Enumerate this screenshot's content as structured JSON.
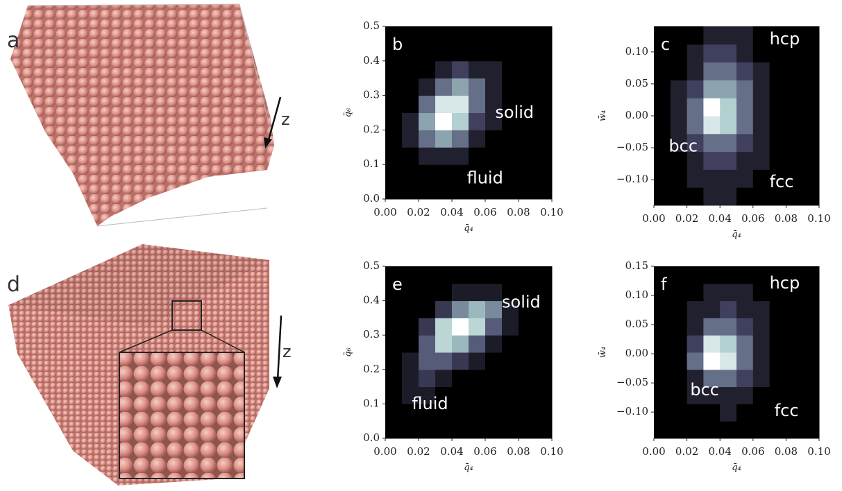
{
  "panels": {
    "a": {
      "label": "a",
      "axis": "z"
    },
    "d": {
      "label": "d",
      "axis": "z"
    }
  },
  "colormap": [
    "#000000",
    "#4b4b6e",
    "#a5c8c8",
    "#ffffff"
  ],
  "chart_data": [
    {
      "type": "heatmap",
      "panel": "b",
      "xlabel": "q̄₄",
      "ylabel": "q̄₆",
      "annotations": [
        "solid",
        "fluid"
      ],
      "xlim": [
        0,
        0.1
      ],
      "ylim": [
        0,
        0.5
      ],
      "xticks": [
        {
          "value": 0,
          "label": "0.00"
        },
        {
          "value": 0.02,
          "label": "0.02"
        },
        {
          "value": 0.04,
          "label": "0.04"
        },
        {
          "value": 0.06,
          "label": "0.06"
        },
        {
          "value": 0.08,
          "label": "0.08"
        },
        {
          "value": 0.1,
          "label": "0.10"
        }
      ],
      "yticks": [
        {
          "value": 0,
          "label": "0.0"
        },
        0.1,
        0.2,
        0.3,
        0.4,
        0.5
      ],
      "xbins": [
        0,
        0.01,
        0.02,
        0.03,
        0.04,
        0.05,
        0.06,
        0.07,
        0.08,
        0.09,
        0.1
      ],
      "ybins": [
        0,
        0.05,
        0.1,
        0.15,
        0.2,
        0.25,
        0.3,
        0.35,
        0.4,
        0.45,
        0.5
      ],
      "values": [
        [
          0,
          0,
          0,
          0,
          0,
          0,
          0,
          0,
          0,
          0
        ],
        [
          0,
          0,
          0,
          0,
          0,
          0,
          0,
          0,
          0,
          0
        ],
        [
          0,
          0,
          1,
          1,
          1,
          0,
          0,
          0,
          0,
          0
        ],
        [
          0,
          1,
          3,
          4,
          3,
          1,
          0,
          0,
          0,
          0
        ],
        [
          0,
          1,
          4,
          7,
          5,
          2,
          1,
          0,
          0,
          0
        ],
        [
          0,
          0,
          3,
          6,
          6,
          3,
          1,
          0,
          0,
          0
        ],
        [
          0,
          0,
          1,
          3,
          4,
          3,
          1,
          0,
          0,
          0
        ],
        [
          0,
          0,
          0,
          1,
          2,
          1,
          1,
          0,
          0,
          0
        ],
        [
          0,
          0,
          0,
          0,
          0,
          0,
          0,
          0,
          0,
          0
        ],
        [
          0,
          0,
          0,
          0,
          0,
          0,
          0,
          0,
          0,
          0
        ]
      ]
    },
    {
      "type": "heatmap",
      "panel": "c",
      "xlabel": "q̄₄",
      "ylabel": "w̄₄",
      "annotations": [
        "hcp",
        "bcc",
        "fcc"
      ],
      "xlim": [
        0,
        0.1
      ],
      "ylim": [
        -0.14,
        0.14
      ],
      "xticks": [
        {
          "value": 0,
          "label": "0.00"
        },
        {
          "value": 0.02,
          "label": "0.02"
        },
        {
          "value": 0.04,
          "label": "0.04"
        },
        {
          "value": 0.06,
          "label": "0.06"
        },
        {
          "value": 0.08,
          "label": "0.08"
        },
        {
          "value": 0.1,
          "label": "0.10"
        }
      ],
      "yticks": [
        {
          "value": -0.1,
          "label": "−0.10"
        },
        {
          "value": -0.05,
          "label": "−0.05"
        },
        {
          "value": 0,
          "label": "0.00"
        },
        0.05,
        {
          "value": 0.1,
          "label": "0.10"
        }
      ],
      "xbins": [
        0,
        0.01,
        0.02,
        0.03,
        0.04,
        0.05,
        0.06,
        0.07,
        0.08,
        0.09,
        0.1
      ],
      "ybins": [
        -0.14,
        -0.112,
        -0.084,
        -0.056,
        -0.028,
        0,
        0.028,
        0.056,
        0.084,
        0.112,
        0.14
      ],
      "values": [
        [
          0,
          0,
          0,
          1,
          1,
          0,
          0,
          0,
          0,
          0
        ],
        [
          0,
          0,
          1,
          1,
          1,
          1,
          0,
          0,
          0,
          0
        ],
        [
          0,
          0,
          1,
          2,
          2,
          1,
          1,
          0,
          0,
          0
        ],
        [
          0,
          1,
          2,
          3,
          3,
          2,
          1,
          0,
          0,
          0
        ],
        [
          0,
          1,
          3,
          6,
          5,
          3,
          1,
          0,
          0,
          0
        ],
        [
          0,
          1,
          3,
          7,
          5,
          3,
          1,
          0,
          0,
          0
        ],
        [
          0,
          1,
          2,
          4,
          4,
          3,
          1,
          0,
          0,
          0
        ],
        [
          0,
          0,
          1,
          3,
          3,
          2,
          1,
          0,
          0,
          0
        ],
        [
          0,
          0,
          1,
          2,
          2,
          1,
          0,
          0,
          0,
          0
        ],
        [
          0,
          0,
          0,
          1,
          1,
          1,
          0,
          0,
          0,
          0
        ]
      ]
    },
    {
      "type": "heatmap",
      "panel": "e",
      "xlabel": "q̄₄",
      "ylabel": "q̄₆",
      "annotations": [
        "solid",
        "fluid"
      ],
      "xlim": [
        0,
        0.1
      ],
      "ylim": [
        0,
        0.5
      ],
      "xticks": [
        {
          "value": 0,
          "label": "0.00"
        },
        {
          "value": 0.02,
          "label": "0.02"
        },
        {
          "value": 0.04,
          "label": "0.04"
        },
        {
          "value": 0.06,
          "label": "0.06"
        },
        {
          "value": 0.08,
          "label": "0.08"
        },
        {
          "value": 0.1,
          "label": "0.10"
        }
      ],
      "yticks": [
        {
          "value": 0,
          "label": "0.0"
        },
        0.1,
        0.2,
        0.3,
        0.4,
        0.5
      ],
      "xbins": [
        0,
        0.01,
        0.02,
        0.03,
        0.04,
        0.05,
        0.06,
        0.07,
        0.08,
        0.09,
        0.1
      ],
      "ybins": [
        0,
        0.05,
        0.1,
        0.15,
        0.2,
        0.25,
        0.3,
        0.35,
        0.4,
        0.45,
        0.5
      ],
      "values": [
        [
          0,
          0,
          0,
          0,
          0,
          0,
          0,
          0,
          0,
          0
        ],
        [
          0,
          0,
          0,
          0,
          0,
          0,
          0,
          0,
          0,
          0
        ],
        [
          0,
          1,
          1,
          0,
          0,
          0,
          0,
          0,
          0,
          0
        ],
        [
          0,
          1,
          2,
          1,
          0,
          0,
          0,
          0,
          0,
          0
        ],
        [
          0,
          1,
          3,
          3,
          2,
          1,
          0,
          0,
          0,
          0
        ],
        [
          0,
          0,
          3,
          6,
          5,
          3,
          1,
          0,
          0,
          0
        ],
        [
          0,
          0,
          2,
          6,
          8,
          6,
          3,
          1,
          0,
          0
        ],
        [
          0,
          0,
          0,
          2,
          4,
          5,
          4,
          1,
          0,
          0
        ],
        [
          0,
          0,
          0,
          0,
          1,
          1,
          1,
          0,
          0,
          0
        ],
        [
          0,
          0,
          0,
          0,
          0,
          0,
          0,
          0,
          0,
          0
        ]
      ]
    },
    {
      "type": "heatmap",
      "panel": "f",
      "xlabel": "q̄₄",
      "ylabel": "w̄₄",
      "annotations": [
        "hcp",
        "bcc",
        "fcc"
      ],
      "xlim": [
        0,
        0.1
      ],
      "ylim": [
        -0.145,
        0.15
      ],
      "xticks": [
        {
          "value": 0,
          "label": "0.00"
        },
        {
          "value": 0.02,
          "label": "0.02"
        },
        {
          "value": 0.04,
          "label": "0.04"
        },
        {
          "value": 0.06,
          "label": "0.06"
        },
        {
          "value": 0.08,
          "label": "0.08"
        },
        {
          "value": 0.1,
          "label": "0.10"
        }
      ],
      "yticks": [
        {
          "value": -0.1,
          "label": "−0.10"
        },
        {
          "value": -0.05,
          "label": "−0.05"
        },
        {
          "value": 0,
          "label": "0.00"
        },
        0.05,
        {
          "value": 0.1,
          "label": "0.10"
        },
        0.15
      ],
      "xbins": [
        0,
        0.01,
        0.02,
        0.03,
        0.04,
        0.05,
        0.06,
        0.07,
        0.08,
        0.09,
        0.1
      ],
      "ybins": [
        -0.145,
        -0.1155,
        -0.086,
        -0.0565,
        -0.027,
        0.0025,
        0.032,
        0.0615,
        0.091,
        0.1205,
        0.15
      ],
      "values": [
        [
          0,
          0,
          0,
          0,
          0,
          0,
          0,
          0,
          0,
          0
        ],
        [
          0,
          0,
          0,
          0,
          1,
          0,
          0,
          0,
          0,
          0
        ],
        [
          0,
          0,
          1,
          1,
          1,
          1,
          0,
          0,
          0,
          0
        ],
        [
          0,
          0,
          1,
          3,
          3,
          2,
          1,
          0,
          0,
          0
        ],
        [
          0,
          0,
          3,
          7,
          6,
          3,
          1,
          0,
          0,
          0
        ],
        [
          0,
          0,
          2,
          6,
          5,
          3,
          1,
          0,
          0,
          0
        ],
        [
          0,
          0,
          1,
          3,
          3,
          2,
          1,
          0,
          0,
          0
        ],
        [
          0,
          0,
          1,
          1,
          2,
          1,
          1,
          0,
          0,
          0
        ],
        [
          0,
          0,
          0,
          1,
          1,
          1,
          0,
          0,
          0,
          0
        ],
        [
          0,
          0,
          0,
          0,
          0,
          0,
          0,
          0,
          0,
          0
        ]
      ]
    }
  ]
}
